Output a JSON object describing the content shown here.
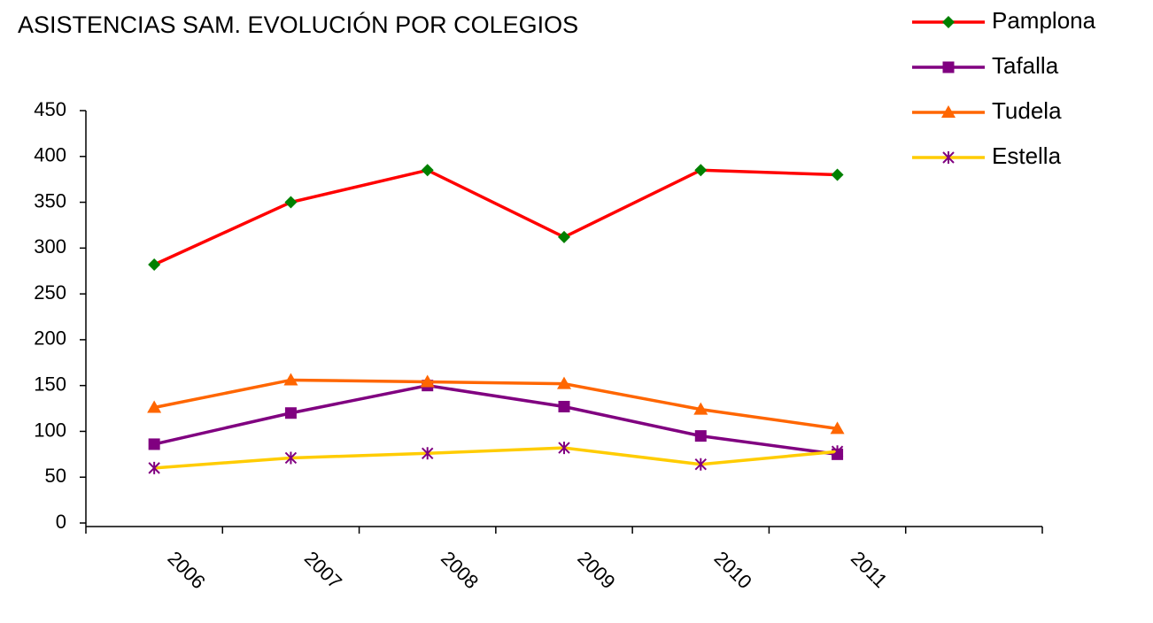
{
  "chart_data": {
    "type": "line",
    "title": "ASISTENCIAS SAM.  EVOLUCIÓN POR COLEGIOS",
    "categories": [
      "2006",
      "2007",
      "2008",
      "2009",
      "2010",
      "2011",
      null
    ],
    "series": [
      {
        "name": "Pamplona",
        "color": "#ff0000",
        "marker": "diamond",
        "marker_color": "#008000",
        "values": [
          282,
          350,
          385,
          312,
          385,
          380,
          null
        ]
      },
      {
        "name": "Tafalla",
        "color": "#800080",
        "marker": "square",
        "marker_color": "#800080",
        "values": [
          86,
          120,
          150,
          127,
          95,
          75,
          null
        ]
      },
      {
        "name": "Tudela",
        "color": "#ff6600",
        "marker": "triangle",
        "marker_color": "#ff6600",
        "values": [
          126,
          156,
          154,
          152,
          124,
          103,
          null
        ]
      },
      {
        "name": "Estella",
        "color": "#ffcc00",
        "marker": "asterisk",
        "marker_color": "#800080",
        "values": [
          60,
          71,
          76,
          82,
          64,
          78,
          null
        ]
      }
    ],
    "ylim": [
      0,
      450
    ],
    "yticks": [
      0,
      50,
      100,
      150,
      200,
      250,
      300,
      350,
      400,
      450
    ],
    "legend": "top-right"
  }
}
